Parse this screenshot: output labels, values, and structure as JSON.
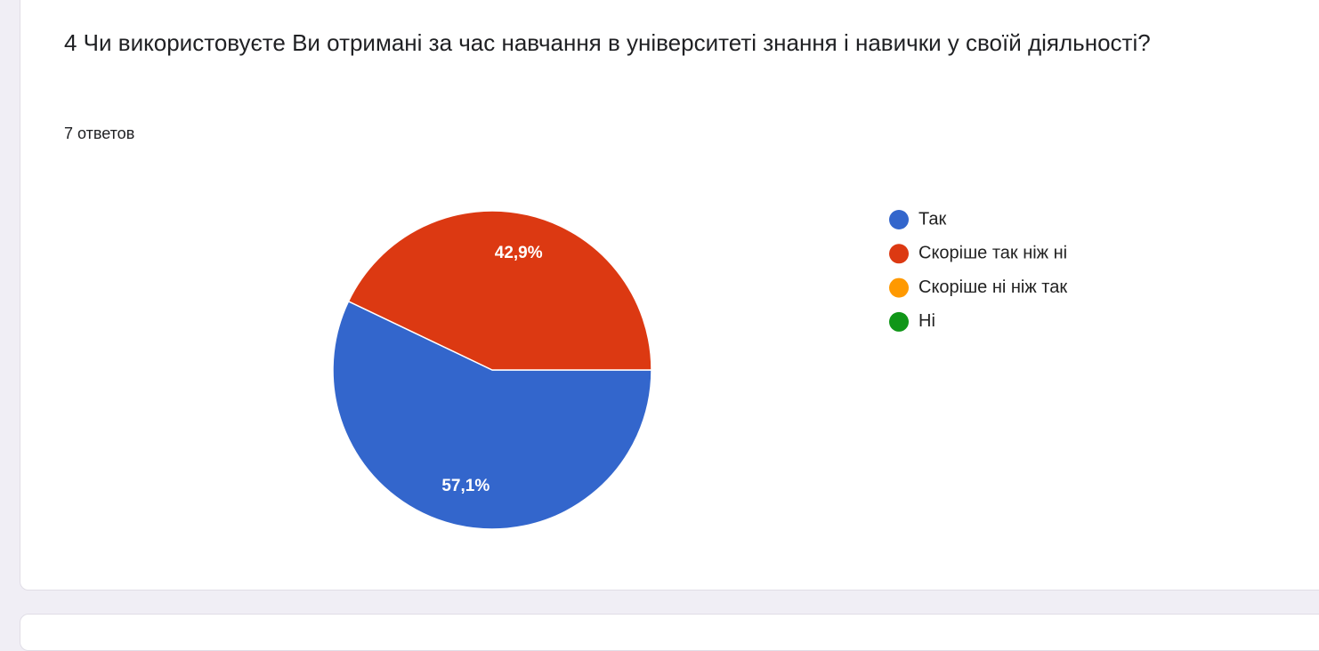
{
  "chart_data": {
    "type": "pie",
    "title": "4 Чи використовуєте Ви отримані за час навчання в університеті знання і навички у своїй діяльності?",
    "subtitle": "7 ответов",
    "categories": [
      "Так",
      "Скоріше так ніж ні",
      "Скоріше ні ніж так",
      "Ні"
    ],
    "values": [
      57.1,
      42.9,
      0,
      0
    ],
    "value_labels": [
      "57,1%",
      "42,9%",
      null,
      null
    ],
    "colors": [
      "#3366cc",
      "#dc3912",
      "#ff9900",
      "#109618"
    ],
    "legend": "right"
  }
}
